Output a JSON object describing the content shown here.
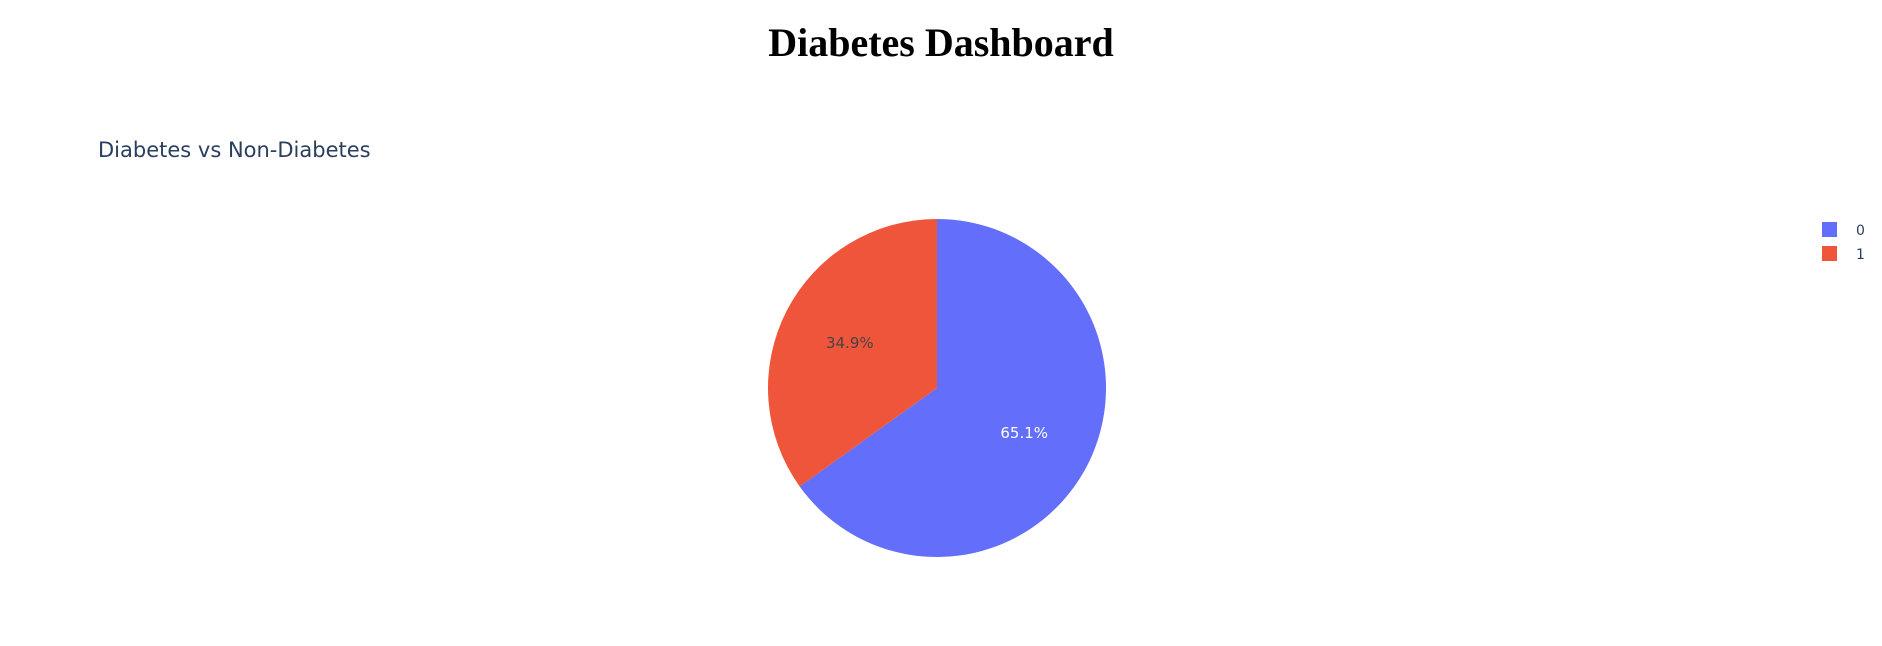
{
  "page": {
    "title": "Diabetes Dashboard"
  },
  "chart_data": {
    "type": "pie",
    "title": "Diabetes vs Non-Diabetes",
    "categories": [
      "0",
      "1"
    ],
    "values": [
      65.1,
      34.9
    ],
    "labels": [
      "65.1%",
      "34.9%"
    ],
    "colors": [
      "#636efa",
      "#ef553b"
    ],
    "label_colors": [
      "#ffffff",
      "#444444"
    ],
    "legend": {
      "placement": "top-right",
      "entries": [
        "0",
        "1"
      ]
    }
  }
}
